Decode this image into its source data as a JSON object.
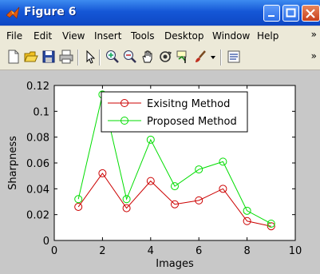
{
  "window": {
    "title": "Figure 6"
  },
  "menu": {
    "items": [
      "File",
      "Edit",
      "View",
      "Insert",
      "Tools",
      "Desktop",
      "Window",
      "Help"
    ],
    "more": "»"
  },
  "toolbar": {
    "tools": [
      "new-figure-icon",
      "open-file-icon",
      "save-icon",
      "print-icon",
      "edit-plot-icon",
      "zoom-in-icon",
      "zoom-out-icon",
      "pan-icon",
      "rotate-3d-icon",
      "data-cursor-icon",
      "brush-icon",
      "dropdown-icon",
      "link-plot-icon"
    ],
    "more": "»"
  },
  "chart_data": {
    "type": "line",
    "xlabel": "Images",
    "ylabel": "Sharpness",
    "xlim": [
      0,
      10
    ],
    "ylim": [
      0,
      0.12
    ],
    "xticks": [
      "0",
      "2",
      "4",
      "6",
      "8",
      "10"
    ],
    "yticks": [
      "0",
      "0.02",
      "0.04",
      "0.06",
      "0.08",
      "0.1",
      "0.12"
    ],
    "x": [
      1,
      2,
      3,
      4,
      5,
      6,
      7,
      8,
      9
    ],
    "series": [
      {
        "name": "Exisitng Method",
        "color": "#cc0000",
        "marker": "circle",
        "values": [
          0.026,
          0.052,
          0.025,
          0.046,
          0.028,
          0.031,
          0.04,
          0.015,
          0.011
        ]
      },
      {
        "name": "Proposed Method",
        "color": "#00dd00",
        "marker": "circle",
        "values": [
          0.032,
          0.113,
          0.032,
          0.078,
          0.042,
          0.055,
          0.061,
          0.023,
          0.013
        ]
      }
    ],
    "legend_position": "top-center",
    "grid": false
  }
}
